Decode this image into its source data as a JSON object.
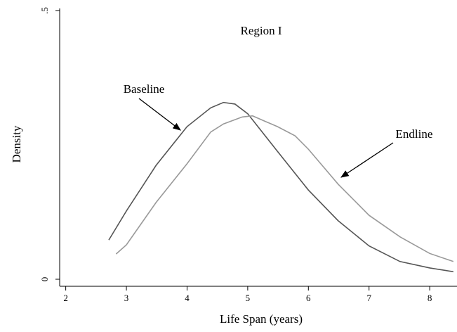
{
  "chart_data": {
    "type": "line",
    "title": "Region I",
    "xlabel": "Life Span (years)",
    "ylabel": "Density",
    "xlim": [
      1.9,
      8.45
    ],
    "ylim": [
      0,
      0.5
    ],
    "xticks": [
      2,
      3,
      4,
      5,
      6,
      7,
      8
    ],
    "yticks": [
      0,
      {
        "value": 0.5,
        "label": ".5"
      }
    ],
    "annotations": [
      "Baseline",
      "Endline"
    ],
    "series": [
      {
        "name": "Baseline",
        "color": "#555555",
        "x": [
          2.71,
          3.0,
          3.49,
          4.0,
          4.39,
          4.6,
          4.79,
          5.0,
          5.49,
          6.0,
          6.49,
          7.0,
          7.51,
          8.0,
          8.39
        ],
        "values": [
          0.073,
          0.127,
          0.212,
          0.284,
          0.319,
          0.329,
          0.326,
          0.308,
          0.238,
          0.166,
          0.109,
          0.062,
          0.033,
          0.021,
          0.014
        ]
      },
      {
        "name": "Endline",
        "color": "#999999",
        "x": [
          2.83,
          3.0,
          3.49,
          4.0,
          4.39,
          4.6,
          4.91,
          5.08,
          5.49,
          5.78,
          6.0,
          6.49,
          7.0,
          7.51,
          8.0,
          8.39
        ],
        "values": [
          0.047,
          0.064,
          0.143,
          0.215,
          0.274,
          0.289,
          0.302,
          0.304,
          0.284,
          0.267,
          0.242,
          0.177,
          0.119,
          0.079,
          0.048,
          0.033
        ]
      }
    ]
  }
}
